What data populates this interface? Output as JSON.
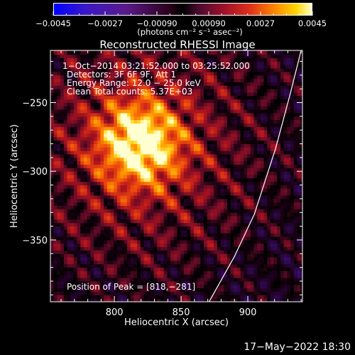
{
  "colorbar": {
    "tick_labels": [
      "−0.0045",
      "−0.0027",
      "−0.00090",
      "0.00090",
      "0.0027",
      "0.0045"
    ],
    "unit_label": "(photons cm⁻² s⁻¹ asec⁻²)"
  },
  "title": "Reconstructed RHESSI Image",
  "annotations": {
    "line1": "1−Oct−2014 03:21:52.000 to 03:25:52.000",
    "line2": "Detectors: 3F 6F 9F, Att 1",
    "line3": "Energy Range: 12.0 − 25.0 keV",
    "line4": "Clean     Total counts: 5.37E+03",
    "peak": "Position of Peak = [818,−281]"
  },
  "footer_date": "17−May−2022 18:30",
  "chart_data": {
    "type": "heatmap",
    "title": "Reconstructed RHESSI Image",
    "xlabel": "Heliocentric X (arcsec)",
    "ylabel": "Heliocentric Y (arcsec)",
    "x_ticks": [
      {
        "value": 800,
        "label": "800"
      },
      {
        "value": 850,
        "label": "850"
      },
      {
        "value": 900,
        "label": "900"
      }
    ],
    "y_ticks": [
      {
        "value": -250,
        "label": "−250"
      },
      {
        "value": -300,
        "label": "−300"
      },
      {
        "value": -350,
        "label": "−350"
      }
    ],
    "xlim": [
      752,
      941
    ],
    "ylim": [
      -395,
      -212
    ],
    "color_range": [
      -0.0045,
      0.0045
    ],
    "peak": [
      818,
      -281
    ],
    "limb_curve": [
      [
        871,
        -395
      ],
      [
        890,
        -362
      ],
      [
        905,
        -331
      ],
      [
        921,
        -283
      ],
      [
        932,
        -243
      ],
      [
        940,
        -212
      ]
    ],
    "grid": false
  }
}
